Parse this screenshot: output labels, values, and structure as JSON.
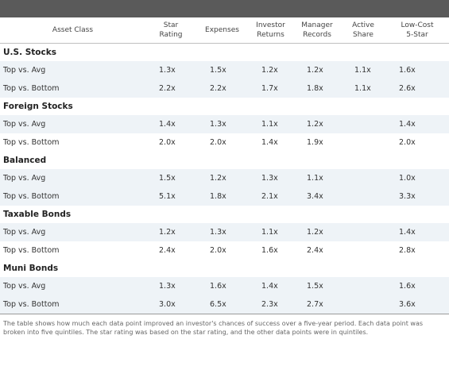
{
  "headers": {
    "asset_class": "Asset Class",
    "star_rating": [
      "Star",
      "Rating"
    ],
    "expenses": "Expenses",
    "investor_returns": [
      "Investor",
      "Returns"
    ],
    "manager_records": [
      "Manager",
      "Records"
    ],
    "active_share": [
      "Active",
      "Share"
    ],
    "low_cost": [
      "Low-Cost",
      "5-Star"
    ]
  },
  "groups": [
    {
      "name": "U.S. Stocks",
      "rows": [
        {
          "label": "Top vs. Avg",
          "values": [
            "1.3x",
            "1.5x",
            "1.2x",
            "1.2x",
            "1.1x",
            "1.6x"
          ]
        },
        {
          "label": "Top vs. Bottom",
          "values": [
            "2.2x",
            "2.2x",
            "1.7x",
            "1.8x",
            "1.1x",
            "2.6x"
          ]
        }
      ]
    },
    {
      "name": "Foreign Stocks",
      "rows": [
        {
          "label": "Top vs. Avg",
          "values": [
            "1.4x",
            "1.3x",
            "1.1x",
            "1.2x",
            "",
            "1.4x"
          ]
        },
        {
          "label": "Top vs. Bottom",
          "values": [
            "2.0x",
            "2.0x",
            "1.4x",
            "1.9x",
            "",
            "2.0x"
          ]
        }
      ]
    },
    {
      "name": "Balanced",
      "rows": [
        {
          "label": "Top vs. Avg",
          "values": [
            "1.5x",
            "1.2x",
            "1.3x",
            "1.1x",
            "",
            "1.0x"
          ]
        },
        {
          "label": "Top vs. Bottom",
          "values": [
            "5.1x",
            "1.8x",
            "2.1x",
            "3.4x",
            "",
            "3.3x"
          ]
        }
      ]
    },
    {
      "name": "Taxable Bonds",
      "rows": [
        {
          "label": "Top vs. Avg",
          "values": [
            "1.2x",
            "1.3x",
            "1.1x",
            "1.2x",
            "",
            "1.4x"
          ]
        },
        {
          "label": "Top vs. Bottom",
          "values": [
            "2.4x",
            "2.0x",
            "1.6x",
            "2.4x",
            "",
            "2.8x"
          ]
        }
      ]
    },
    {
      "name": "Muni Bonds",
      "rows": [
        {
          "label": "Top vs. Avg",
          "values": [
            "1.3x",
            "1.6x",
            "1.4x",
            "1.5x",
            "",
            "1.6x"
          ]
        },
        {
          "label": "Top vs. Bottom",
          "values": [
            "3.0x",
            "6.5x",
            "2.3x",
            "2.7x",
            "",
            "3.6x"
          ]
        }
      ]
    }
  ],
  "footnote": "The table shows how much each data point improved an investor's chances of success over a five-year period. Each data point was broken into five quintiles. The star rating was based on the star rating, and the other data points were in quintiles.",
  "colors": {
    "header_bar": "#5a5a5a",
    "row_shade": "#eef3f7"
  }
}
